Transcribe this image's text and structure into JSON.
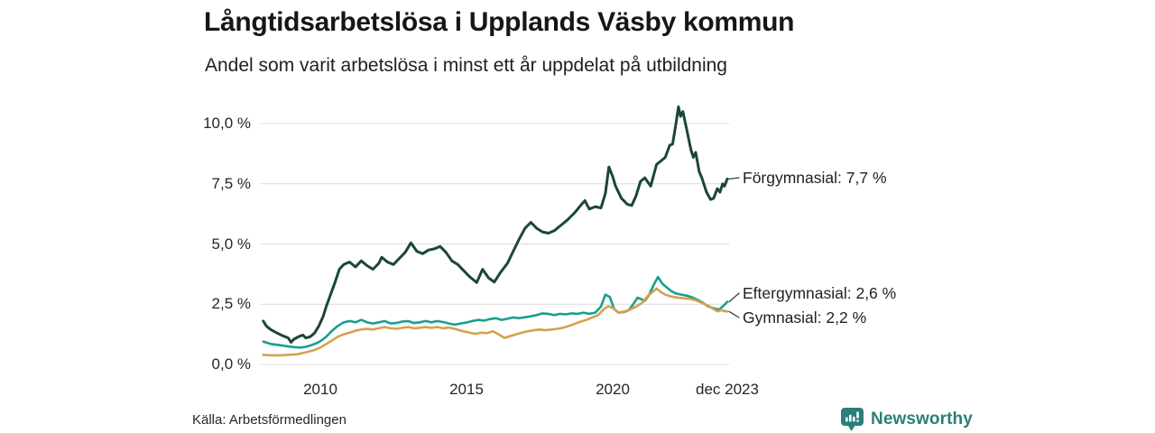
{
  "header": {
    "title": "Långtidsarbetslösa i Upplands Väsby kommun",
    "subtitle": "Andel som varit arbetslösa i minst ett år uppdelat på utbildning"
  },
  "colors": {
    "gridline": "#dcdcdc",
    "connector": "#3a3a3a",
    "axis_text": "#262626",
    "logo": "#2B7F78"
  },
  "chart_data": {
    "type": "line",
    "title": "Långtidsarbetslösa i Upplands Väsby kommun",
    "subtitle": "Andel som varit arbetslösa i minst ett år uppdelat på utbildning",
    "unit": "%",
    "grid": true,
    "legend_position": "end-of-line labels (right of last data point)",
    "x_axis": {
      "range": [
        2008.05,
        2023.92
      ],
      "ticks": [
        {
          "t": 2010,
          "label": "2010"
        },
        {
          "t": 2015,
          "label": "2015"
        },
        {
          "t": 2020,
          "label": "2020"
        },
        {
          "t": 2023.92,
          "label": "dec 2023"
        }
      ]
    },
    "y_axis": {
      "range": [
        0,
        10.8
      ],
      "ticks": [
        {
          "v": 10.0,
          "label": "10,0 %"
        },
        {
          "v": 7.5,
          "label": "7,5 %"
        },
        {
          "v": 5.0,
          "label": "5,0 %"
        },
        {
          "v": 2.5,
          "label": "2,5 %"
        },
        {
          "v": 0.0,
          "label": "0,0 %"
        }
      ]
    },
    "series": [
      {
        "name": "Förgymnasial",
        "end_label": "Förgymnasial: 7,7 %",
        "end_value": 7.7,
        "color": "#1C4637",
        "stroke_width": 3,
        "points": [
          [
            2008.05,
            1.8
          ],
          [
            2008.15,
            1.6
          ],
          [
            2008.3,
            1.45
          ],
          [
            2008.5,
            1.32
          ],
          [
            2008.7,
            1.2
          ],
          [
            2008.9,
            1.1
          ],
          [
            2009.0,
            0.92
          ],
          [
            2009.1,
            1.05
          ],
          [
            2009.25,
            1.15
          ],
          [
            2009.4,
            1.22
          ],
          [
            2009.5,
            1.1
          ],
          [
            2009.65,
            1.15
          ],
          [
            2009.8,
            1.3
          ],
          [
            2009.95,
            1.6
          ],
          [
            2010.1,
            2.0
          ],
          [
            2010.2,
            2.4
          ],
          [
            2010.35,
            2.9
          ],
          [
            2010.5,
            3.4
          ],
          [
            2010.65,
            3.95
          ],
          [
            2010.8,
            4.15
          ],
          [
            2011.0,
            4.25
          ],
          [
            2011.2,
            4.05
          ],
          [
            2011.4,
            4.3
          ],
          [
            2011.6,
            4.1
          ],
          [
            2011.8,
            3.95
          ],
          [
            2012.0,
            4.2
          ],
          [
            2012.1,
            4.45
          ],
          [
            2012.3,
            4.25
          ],
          [
            2012.5,
            4.15
          ],
          [
            2012.7,
            4.4
          ],
          [
            2012.9,
            4.65
          ],
          [
            2013.1,
            5.05
          ],
          [
            2013.3,
            4.7
          ],
          [
            2013.5,
            4.6
          ],
          [
            2013.7,
            4.75
          ],
          [
            2013.9,
            4.8
          ],
          [
            2014.1,
            4.9
          ],
          [
            2014.3,
            4.65
          ],
          [
            2014.5,
            4.3
          ],
          [
            2014.7,
            4.15
          ],
          [
            2014.9,
            3.9
          ],
          [
            2015.1,
            3.65
          ],
          [
            2015.35,
            3.4
          ],
          [
            2015.55,
            3.95
          ],
          [
            2015.75,
            3.6
          ],
          [
            2015.95,
            3.42
          ],
          [
            2016.15,
            3.8
          ],
          [
            2016.4,
            4.2
          ],
          [
            2016.6,
            4.7
          ],
          [
            2016.8,
            5.2
          ],
          [
            2017.0,
            5.65
          ],
          [
            2017.2,
            5.9
          ],
          [
            2017.4,
            5.65
          ],
          [
            2017.6,
            5.5
          ],
          [
            2017.8,
            5.45
          ],
          [
            2018.0,
            5.55
          ],
          [
            2018.2,
            5.75
          ],
          [
            2018.45,
            6.0
          ],
          [
            2018.7,
            6.3
          ],
          [
            2018.9,
            6.6
          ],
          [
            2019.05,
            6.8
          ],
          [
            2019.2,
            6.45
          ],
          [
            2019.4,
            6.55
          ],
          [
            2019.6,
            6.5
          ],
          [
            2019.75,
            7.1
          ],
          [
            2019.87,
            8.2
          ],
          [
            2020.0,
            7.8
          ],
          [
            2020.1,
            7.4
          ],
          [
            2020.3,
            6.9
          ],
          [
            2020.5,
            6.65
          ],
          [
            2020.65,
            6.6
          ],
          [
            2020.8,
            7.0
          ],
          [
            2020.95,
            7.6
          ],
          [
            2021.1,
            7.75
          ],
          [
            2021.3,
            7.4
          ],
          [
            2021.5,
            8.3
          ],
          [
            2021.65,
            8.45
          ],
          [
            2021.8,
            8.6
          ],
          [
            2021.95,
            9.1
          ],
          [
            2022.05,
            9.15
          ],
          [
            2022.15,
            9.9
          ],
          [
            2022.25,
            10.7
          ],
          [
            2022.32,
            10.3
          ],
          [
            2022.4,
            10.5
          ],
          [
            2022.56,
            9.6
          ],
          [
            2022.68,
            8.9
          ],
          [
            2022.76,
            8.6
          ],
          [
            2022.84,
            8.8
          ],
          [
            2022.96,
            8.0
          ],
          [
            2023.05,
            7.75
          ],
          [
            2023.21,
            7.15
          ],
          [
            2023.35,
            6.85
          ],
          [
            2023.45,
            6.9
          ],
          [
            2023.58,
            7.3
          ],
          [
            2023.67,
            7.15
          ],
          [
            2023.76,
            7.5
          ],
          [
            2023.82,
            7.4
          ],
          [
            2023.92,
            7.7
          ]
        ]
      },
      {
        "name": "Eftergymnasial",
        "end_label": "Eftergymnasial: 2,6 %",
        "end_value": 2.6,
        "color": "#17A08E",
        "stroke_width": 2.6,
        "points": [
          [
            2008.05,
            0.95
          ],
          [
            2008.3,
            0.85
          ],
          [
            2008.6,
            0.8
          ],
          [
            2008.9,
            0.75
          ],
          [
            2009.1,
            0.72
          ],
          [
            2009.3,
            0.7
          ],
          [
            2009.5,
            0.73
          ],
          [
            2009.7,
            0.8
          ],
          [
            2009.9,
            0.9
          ],
          [
            2010.05,
            1.0
          ],
          [
            2010.2,
            1.15
          ],
          [
            2010.4,
            1.4
          ],
          [
            2010.6,
            1.6
          ],
          [
            2010.8,
            1.75
          ],
          [
            2011.0,
            1.8
          ],
          [
            2011.2,
            1.75
          ],
          [
            2011.4,
            1.85
          ],
          [
            2011.6,
            1.75
          ],
          [
            2011.8,
            1.7
          ],
          [
            2012.0,
            1.75
          ],
          [
            2012.2,
            1.8
          ],
          [
            2012.4,
            1.7
          ],
          [
            2012.6,
            1.72
          ],
          [
            2012.8,
            1.78
          ],
          [
            2013.0,
            1.8
          ],
          [
            2013.2,
            1.72
          ],
          [
            2013.4,
            1.75
          ],
          [
            2013.6,
            1.8
          ],
          [
            2013.8,
            1.75
          ],
          [
            2014.0,
            1.8
          ],
          [
            2014.2,
            1.76
          ],
          [
            2014.4,
            1.7
          ],
          [
            2014.6,
            1.65
          ],
          [
            2014.8,
            1.7
          ],
          [
            2015.0,
            1.74
          ],
          [
            2015.2,
            1.8
          ],
          [
            2015.4,
            1.85
          ],
          [
            2015.6,
            1.82
          ],
          [
            2015.8,
            1.88
          ],
          [
            2016.0,
            1.92
          ],
          [
            2016.2,
            1.85
          ],
          [
            2016.4,
            1.9
          ],
          [
            2016.6,
            1.95
          ],
          [
            2016.8,
            1.92
          ],
          [
            2017.0,
            1.96
          ],
          [
            2017.2,
            2.0
          ],
          [
            2017.4,
            2.05
          ],
          [
            2017.6,
            2.12
          ],
          [
            2017.8,
            2.1
          ],
          [
            2018.0,
            2.05
          ],
          [
            2018.2,
            2.1
          ],
          [
            2018.4,
            2.08
          ],
          [
            2018.6,
            2.12
          ],
          [
            2018.8,
            2.1
          ],
          [
            2019.0,
            2.15
          ],
          [
            2019.2,
            2.1
          ],
          [
            2019.4,
            2.15
          ],
          [
            2019.6,
            2.4
          ],
          [
            2019.75,
            2.9
          ],
          [
            2019.9,
            2.8
          ],
          [
            2020.05,
            2.3
          ],
          [
            2020.2,
            2.15
          ],
          [
            2020.4,
            2.18
          ],
          [
            2020.55,
            2.25
          ],
          [
            2020.7,
            2.5
          ],
          [
            2020.85,
            2.77
          ],
          [
            2021.0,
            2.7
          ],
          [
            2021.1,
            2.64
          ],
          [
            2021.25,
            2.9
          ],
          [
            2021.4,
            3.3
          ],
          [
            2021.55,
            3.63
          ],
          [
            2021.7,
            3.35
          ],
          [
            2021.85,
            3.2
          ],
          [
            2022.0,
            3.05
          ],
          [
            2022.15,
            2.95
          ],
          [
            2022.35,
            2.9
          ],
          [
            2022.55,
            2.85
          ],
          [
            2022.75,
            2.77
          ],
          [
            2022.95,
            2.65
          ],
          [
            2023.1,
            2.55
          ],
          [
            2023.25,
            2.42
          ],
          [
            2023.4,
            2.35
          ],
          [
            2023.55,
            2.3
          ],
          [
            2023.65,
            2.28
          ],
          [
            2023.8,
            2.45
          ],
          [
            2023.92,
            2.6
          ]
        ]
      },
      {
        "name": "Gymnasial",
        "end_label": "Gymnasial: 2,2 %",
        "end_value": 2.2,
        "color": "#D5A14B",
        "stroke_width": 2.6,
        "points": [
          [
            2008.05,
            0.4
          ],
          [
            2008.3,
            0.38
          ],
          [
            2008.6,
            0.38
          ],
          [
            2008.9,
            0.4
          ],
          [
            2009.2,
            0.42
          ],
          [
            2009.5,
            0.5
          ],
          [
            2009.8,
            0.6
          ],
          [
            2010.0,
            0.7
          ],
          [
            2010.2,
            0.85
          ],
          [
            2010.4,
            1.0
          ],
          [
            2010.6,
            1.15
          ],
          [
            2010.8,
            1.25
          ],
          [
            2011.0,
            1.32
          ],
          [
            2011.2,
            1.4
          ],
          [
            2011.4,
            1.45
          ],
          [
            2011.6,
            1.48
          ],
          [
            2011.8,
            1.45
          ],
          [
            2012.0,
            1.5
          ],
          [
            2012.2,
            1.55
          ],
          [
            2012.4,
            1.5
          ],
          [
            2012.6,
            1.48
          ],
          [
            2012.8,
            1.52
          ],
          [
            2013.0,
            1.55
          ],
          [
            2013.2,
            1.5
          ],
          [
            2013.4,
            1.52
          ],
          [
            2013.6,
            1.55
          ],
          [
            2013.8,
            1.52
          ],
          [
            2014.0,
            1.55
          ],
          [
            2014.2,
            1.5
          ],
          [
            2014.4,
            1.53
          ],
          [
            2014.6,
            1.48
          ],
          [
            2014.8,
            1.4
          ],
          [
            2015.0,
            1.35
          ],
          [
            2015.3,
            1.27
          ],
          [
            2015.5,
            1.32
          ],
          [
            2015.7,
            1.3
          ],
          [
            2015.9,
            1.38
          ],
          [
            2016.1,
            1.25
          ],
          [
            2016.3,
            1.1
          ],
          [
            2016.5,
            1.18
          ],
          [
            2016.7,
            1.25
          ],
          [
            2016.9,
            1.32
          ],
          [
            2017.1,
            1.38
          ],
          [
            2017.3,
            1.42
          ],
          [
            2017.5,
            1.45
          ],
          [
            2017.7,
            1.42
          ],
          [
            2017.9,
            1.45
          ],
          [
            2018.1,
            1.48
          ],
          [
            2018.3,
            1.52
          ],
          [
            2018.5,
            1.6
          ],
          [
            2018.7,
            1.68
          ],
          [
            2018.9,
            1.78
          ],
          [
            2019.1,
            1.85
          ],
          [
            2019.3,
            1.95
          ],
          [
            2019.5,
            2.05
          ],
          [
            2019.7,
            2.3
          ],
          [
            2019.85,
            2.42
          ],
          [
            2020.0,
            2.35
          ],
          [
            2020.2,
            2.15
          ],
          [
            2020.4,
            2.2
          ],
          [
            2020.6,
            2.28
          ],
          [
            2020.8,
            2.4
          ],
          [
            2021.0,
            2.55
          ],
          [
            2021.2,
            2.85
          ],
          [
            2021.4,
            3.05
          ],
          [
            2021.5,
            3.15
          ],
          [
            2021.65,
            3.0
          ],
          [
            2021.8,
            2.9
          ],
          [
            2022.0,
            2.82
          ],
          [
            2022.2,
            2.78
          ],
          [
            2022.4,
            2.75
          ],
          [
            2022.6,
            2.73
          ],
          [
            2022.8,
            2.68
          ],
          [
            2023.0,
            2.58
          ],
          [
            2023.15,
            2.5
          ],
          [
            2023.3,
            2.42
          ],
          [
            2023.45,
            2.3
          ],
          [
            2023.6,
            2.2
          ],
          [
            2023.7,
            2.26
          ],
          [
            2023.8,
            2.22
          ],
          [
            2023.92,
            2.2
          ]
        ]
      }
    ]
  },
  "footer": {
    "source": "Källa: Arbetsförmedlingen",
    "logo_text": "Newsworthy",
    "logo_color": "#2B7F78",
    "logo_icon": "speech-bubble-with-bar-chart-and-exclamation"
  }
}
